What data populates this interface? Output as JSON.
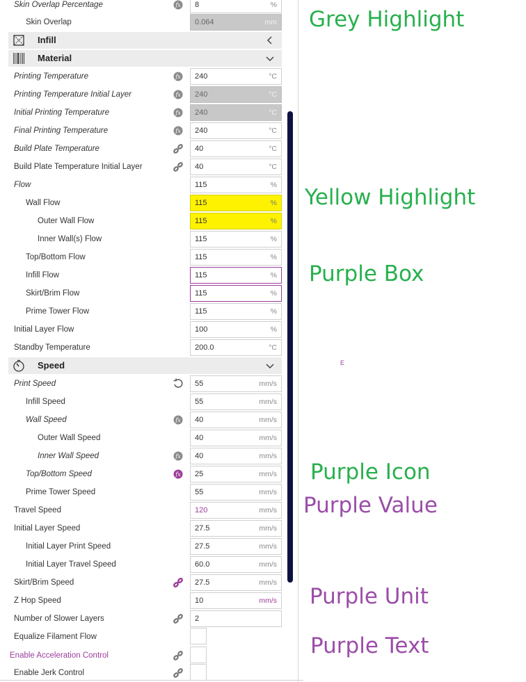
{
  "colors": {
    "annotation_green": "#27b04d",
    "annotation_purple": "#9b4da8",
    "highlight_yellow": "#fff200",
    "highlight_grey": "#c8c8c8",
    "accent_purple": "#9b3d9b",
    "scrollbar": "#0d1240"
  },
  "rows": {
    "skin_overlap_pct": {
      "label": "Skin Overlap Percentage",
      "value": "8",
      "unit": "%",
      "icon": "fx-icon"
    },
    "skin_overlap": {
      "label": "Skin Overlap",
      "value": "0.064",
      "unit": "mm"
    },
    "printing_temp": {
      "label": "Printing Temperature",
      "value": "240",
      "unit": "°C",
      "icon": "fx-icon"
    },
    "printing_temp_initial": {
      "label": "Printing Temperature Initial Layer",
      "value": "240",
      "unit": "°C",
      "icon": "fx-icon"
    },
    "initial_printing_temp": {
      "label": "Initial Printing Temperature",
      "value": "240",
      "unit": "°C",
      "icon": "fx-icon"
    },
    "final_printing_temp": {
      "label": "Final Printing Temperature",
      "value": "240",
      "unit": "°C",
      "icon": "fx-icon"
    },
    "build_plate_temp": {
      "label": "Build Plate Temperature",
      "value": "40",
      "unit": "°C",
      "icon": "link-icon"
    },
    "build_plate_temp_initial": {
      "label": "Build Plate Temperature Initial Layer",
      "value": "40",
      "unit": "°C",
      "icon": "link-icon"
    },
    "flow": {
      "label": "Flow",
      "value": "115",
      "unit": "%"
    },
    "wall_flow": {
      "label": "Wall Flow",
      "value": "115",
      "unit": "%"
    },
    "outer_wall_flow": {
      "label": "Outer Wall Flow",
      "value": "115",
      "unit": "%"
    },
    "inner_wall_flow": {
      "label": "Inner Wall(s) Flow",
      "value": "115",
      "unit": "%"
    },
    "top_bottom_flow": {
      "label": "Top/Bottom Flow",
      "value": "115",
      "unit": "%"
    },
    "infill_flow": {
      "label": "Infill Flow",
      "value": "115",
      "unit": "%"
    },
    "skirt_brim_flow": {
      "label": "Skirt/Brim Flow",
      "value": "115",
      "unit": "%"
    },
    "prime_tower_flow": {
      "label": "Prime Tower Flow",
      "value": "115",
      "unit": "%"
    },
    "initial_layer_flow": {
      "label": "Initial Layer Flow",
      "value": "100",
      "unit": "%"
    },
    "standby_temp": {
      "label": "Standby Temperature",
      "value": "200.0",
      "unit": "°C"
    },
    "print_speed": {
      "label": "Print Speed",
      "value": "55",
      "unit": "mm/s",
      "icon": "reset-icon"
    },
    "infill_speed": {
      "label": "Infill Speed",
      "value": "55",
      "unit": "mm/s"
    },
    "wall_speed": {
      "label": "Wall Speed",
      "value": "40",
      "unit": "mm/s",
      "icon": "fx-icon"
    },
    "outer_wall_speed": {
      "label": "Outer Wall Speed",
      "value": "40",
      "unit": "mm/s"
    },
    "inner_wall_speed": {
      "label": "Inner Wall Speed",
      "value": "40",
      "unit": "mm/s",
      "icon": "fx-icon"
    },
    "top_bottom_speed": {
      "label": "Top/Bottom Speed",
      "value": "25",
      "unit": "mm/s",
      "icon": "fx-icon-purple"
    },
    "prime_tower_speed": {
      "label": "Prime Tower Speed",
      "value": "55",
      "unit": "mm/s"
    },
    "travel_speed": {
      "label": "Travel Speed",
      "value": "120",
      "unit": "mm/s"
    },
    "initial_layer_speed": {
      "label": "Initial Layer Speed",
      "value": "27.5",
      "unit": "mm/s"
    },
    "initial_layer_print_speed": {
      "label": "Initial Layer Print Speed",
      "value": "27.5",
      "unit": "mm/s"
    },
    "initial_layer_travel_speed": {
      "label": "Initial Layer Travel Speed",
      "value": "60.0",
      "unit": "mm/s"
    },
    "skirt_brim_speed": {
      "label": "Skirt/Brim Speed",
      "value": "27.5",
      "unit": "mm/s",
      "icon": "link-icon-purple"
    },
    "z_hop_speed": {
      "label": "Z Hop Speed",
      "value": "10",
      "unit": "mm/s"
    },
    "slower_layers": {
      "label": "Number of Slower Layers",
      "value": "2",
      "icon": "link-icon"
    },
    "equalize_flow": {
      "label": "Equalize Filament Flow"
    },
    "enable_accel": {
      "label": "Enable Acceleration Control",
      "icon": "link-icon"
    },
    "enable_jerk": {
      "label": "Enable Jerk Control",
      "icon": "link-icon"
    }
  },
  "sections": {
    "infill": {
      "title": "Infill",
      "icon": "infill-icon",
      "chevron": "chevron-left-icon"
    },
    "material": {
      "title": "Material",
      "icon": "material-icon",
      "chevron": "chevron-down-icon"
    },
    "speed": {
      "title": "Speed",
      "icon": "speed-icon",
      "chevron": "chevron-down-icon"
    }
  },
  "annotations": {
    "grey_highlight": "Grey Highlight",
    "yellow_highlight": "Yellow Highlight",
    "purple_box": "Purple Box",
    "purple_icon": "Purple Icon",
    "purple_value": "Purple Value",
    "purple_unit": "Purple Unit",
    "purple_text": "Purple Text",
    "stray_mark": "E"
  }
}
